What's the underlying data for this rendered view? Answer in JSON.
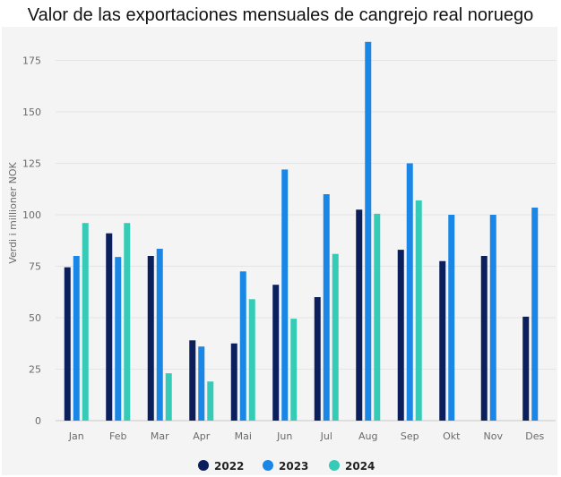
{
  "chart_data": {
    "type": "bar",
    "title": "Valor de las exportaciones mensuales de cangrejo real noruego",
    "ylabel": "Verdi i millioner NOK",
    "xlabel": "",
    "ylim": [
      0,
      185
    ],
    "yticks": [
      0,
      25,
      50,
      75,
      100,
      125,
      150,
      175
    ],
    "grid": true,
    "legend_position": "bottom",
    "categories": [
      "Jan",
      "Feb",
      "Mar",
      "Apr",
      "Mai",
      "Jun",
      "Jul",
      "Aug",
      "Sep",
      "Okt",
      "Nov",
      "Des"
    ],
    "series": [
      {
        "name": "2022",
        "color": "#0a1f5c",
        "values": [
          74.5,
          91,
          80,
          39,
          37.5,
          66,
          60,
          102.5,
          83,
          77.5,
          80,
          50.5
        ]
      },
      {
        "name": "2023",
        "color": "#1a86e6",
        "values": [
          80,
          79.5,
          83.5,
          36,
          72.5,
          122,
          110,
          184,
          125,
          100,
          100,
          103.5
        ]
      },
      {
        "name": "2024",
        "color": "#36cbb7",
        "values": [
          96,
          96,
          23,
          19,
          59,
          49.5,
          81,
          100.5,
          107,
          null,
          null,
          null
        ]
      }
    ]
  }
}
